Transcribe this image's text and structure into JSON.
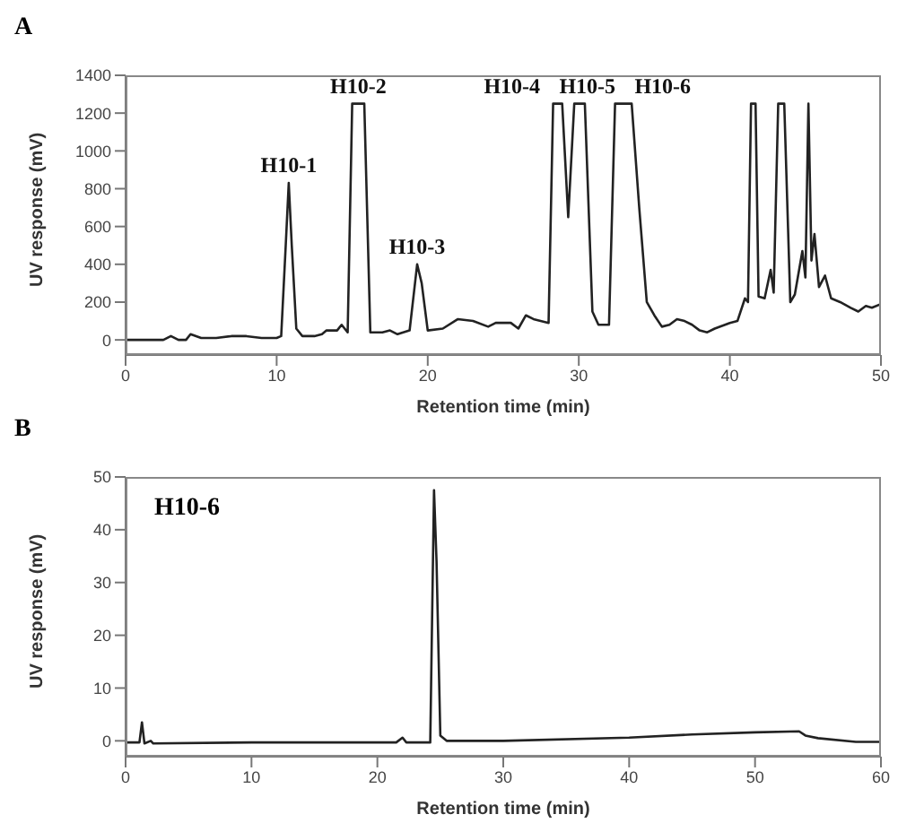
{
  "chart_data": [
    {
      "type": "line",
      "annotations": [
        "A",
        {
          "text": "H10-1",
          "x": 10.8,
          "y": 830
        },
        {
          "text": "H10-2",
          "x": 15.4,
          "y": 1250
        },
        {
          "text": "H10-3",
          "x": 19.3,
          "y": 400
        },
        {
          "text": "H10-4",
          "x": 28.6,
          "y": 1250
        },
        {
          "text": "H10-5",
          "x": 30.1,
          "y": 1250
        },
        {
          "text": "H10-6",
          "x": 33,
          "y": 1250
        }
      ],
      "xlabel": "Retention time (min)",
      "ylabel": "UV response (mV)",
      "xlim": [
        0,
        50
      ],
      "xticks": [
        0,
        10,
        20,
        30,
        40,
        50
      ],
      "ylim": [
        -80,
        1400
      ],
      "yticks": [
        0,
        200,
        400,
        600,
        800,
        1000,
        1200,
        1400
      ],
      "grid": false,
      "legend": false,
      "marker": "none",
      "line_style": "solid",
      "series": [
        {
          "color": "#222222",
          "x": [
            0,
            2.5,
            3,
            3.5,
            4,
            4.3,
            5,
            6,
            7,
            8,
            9,
            10,
            10.3,
            10.6,
            10.8,
            11,
            11.3,
            11.7,
            12.5,
            13,
            13.3,
            14,
            14.3,
            14.7,
            15,
            15.8,
            16.2,
            17,
            17.5,
            18,
            18.8,
            19.3,
            19.6,
            20,
            21,
            22,
            23,
            24,
            24.5,
            25.5,
            26,
            26.5,
            27,
            28,
            28.3,
            28.9,
            29.3,
            29.7,
            30.4,
            30.9,
            31.3,
            32,
            32.4,
            33.5,
            34,
            34.5,
            35,
            35.5,
            36,
            36.5,
            37,
            37.5,
            38,
            38.5,
            39,
            40,
            40.5,
            41,
            41.2,
            41.4,
            41.7,
            41.9,
            42.3,
            42.7,
            42.9,
            43.2,
            43.6,
            44,
            44.3,
            44.8,
            45,
            45.2,
            45.4,
            45.6,
            45.9,
            46.3,
            46.7,
            47.3,
            48,
            48.5,
            49,
            49.4,
            50
          ],
          "values": [
            0,
            0,
            20,
            0,
            0,
            30,
            10,
            10,
            20,
            20,
            10,
            10,
            20,
            500,
            830,
            500,
            60,
            20,
            20,
            30,
            50,
            50,
            80,
            40,
            1250,
            1250,
            40,
            40,
            50,
            30,
            50,
            400,
            300,
            50,
            60,
            110,
            100,
            70,
            90,
            90,
            60,
            130,
            110,
            90,
            1250,
            1250,
            650,
            1250,
            1250,
            150,
            80,
            80,
            1250,
            1250,
            700,
            200,
            130,
            70,
            80,
            110,
            100,
            80,
            50,
            40,
            60,
            90,
            100,
            220,
            200,
            1250,
            1250,
            230,
            220,
            370,
            250,
            1250,
            1250,
            200,
            240,
            470,
            330,
            1250,
            420,
            560,
            280,
            340,
            220,
            200,
            170,
            150,
            180,
            170,
            190
          ]
        }
      ]
    },
    {
      "type": "line",
      "annotations": [
        "B",
        "H10-6"
      ],
      "xlabel": "Retention time (min)",
      "ylabel": "UV response (mV)",
      "xlim": [
        0,
        60
      ],
      "xticks": [
        0,
        10,
        20,
        30,
        40,
        50,
        60
      ],
      "ylim": [
        -3,
        50
      ],
      "yticks": [
        0,
        10,
        20,
        30,
        40,
        50
      ],
      "grid": false,
      "legend": false,
      "marker": "none",
      "line_style": "solid",
      "series": [
        {
          "color": "#222222",
          "x": [
            0,
            1.1,
            1.3,
            1.5,
            2,
            2.2,
            10,
            21.5,
            22,
            22.3,
            24.2,
            24.5,
            24.7,
            25,
            25.5,
            30,
            40,
            45,
            50,
            53.5,
            54,
            55,
            58,
            60
          ],
          "values": [
            -0.3,
            -0.3,
            3.5,
            -0.5,
            0,
            -0.5,
            -0.3,
            -0.3,
            0.6,
            -0.3,
            -0.3,
            47.5,
            34,
            1,
            0,
            0,
            0.6,
            1.2,
            1.6,
            1.8,
            1,
            0.5,
            -0.2,
            -0.2
          ]
        }
      ]
    }
  ]
}
